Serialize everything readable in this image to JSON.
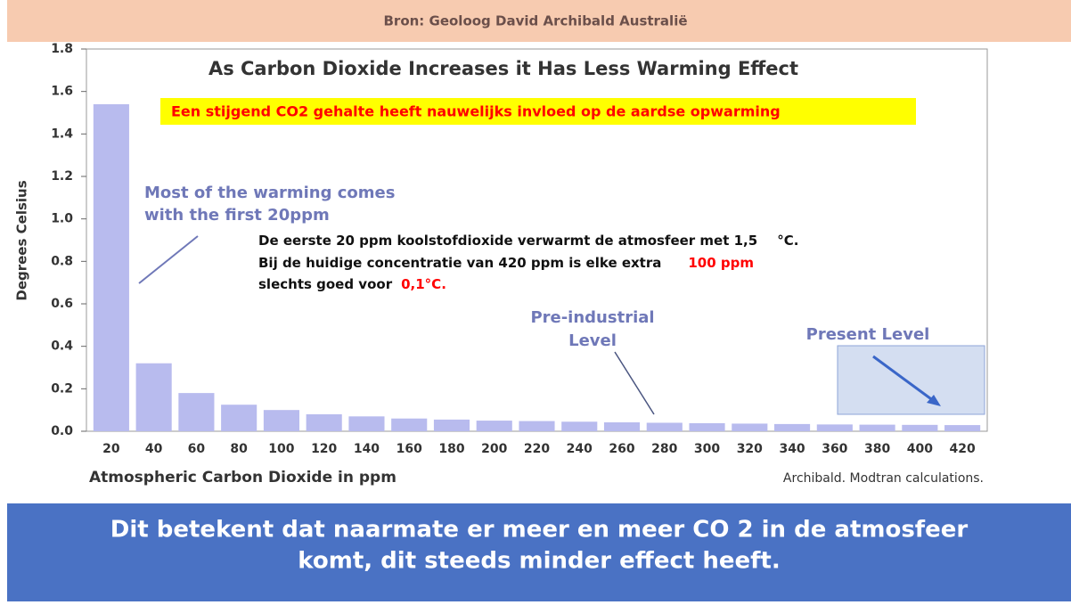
{
  "header": "Bron: Geoloog David Archibald Australië",
  "chart_data": {
    "type": "bar",
    "title": "As Carbon Dioxide Increases it Has Less Warming Effect",
    "subtitle": "Een stijgend CO2 gehalte heeft nauwelijks invloed op de aardse opwarming",
    "x_label": "Atmospheric Carbon Dioxide in ppm",
    "y_label": "Degrees Celsius",
    "source": "Archibald. Modtran calculations.",
    "categories": [
      "20",
      "40",
      "60",
      "80",
      "100",
      "120",
      "140",
      "160",
      "180",
      "200",
      "220",
      "240",
      "260",
      "280",
      "300",
      "320",
      "340",
      "360",
      "380",
      "400",
      "420"
    ],
    "values": [
      1.54,
      0.32,
      0.18,
      0.125,
      0.1,
      0.08,
      0.07,
      0.06,
      0.055,
      0.05,
      0.048,
      0.045,
      0.042,
      0.04,
      0.038,
      0.036,
      0.034,
      0.032,
      0.031,
      0.03,
      0.029
    ],
    "color": "#b8bbee",
    "ylim": [
      0,
      1.8
    ],
    "yticks": [
      {
        "value": 0,
        "label": "0.0"
      },
      0.2,
      0.4,
      0.6,
      0.8,
      {
        "value": 1,
        "label": "1.0"
      },
      1.2,
      1.4,
      1.6,
      1.8
    ],
    "annotations": [
      "Most of the warming comes",
      "with the first 20ppm",
      "Pre-industrial",
      "Level",
      "Present Level"
    ],
    "note_lines": [
      [
        "De eerste 20 ppm koolstofdioxide verwarmt de atmosfeer met 1,5",
        "°C."
      ],
      [
        "Bij de huidige concentratie van 420 ppm is elke extra",
        "100 ppm"
      ],
      [
        "slechts goed voor",
        "0,1°C."
      ]
    ]
  },
  "footer": [
    "Dit betekent dat naarmate er meer en meer CO 2 in de atmosfeer",
    "komt, dit steeds minder effect heeft."
  ]
}
